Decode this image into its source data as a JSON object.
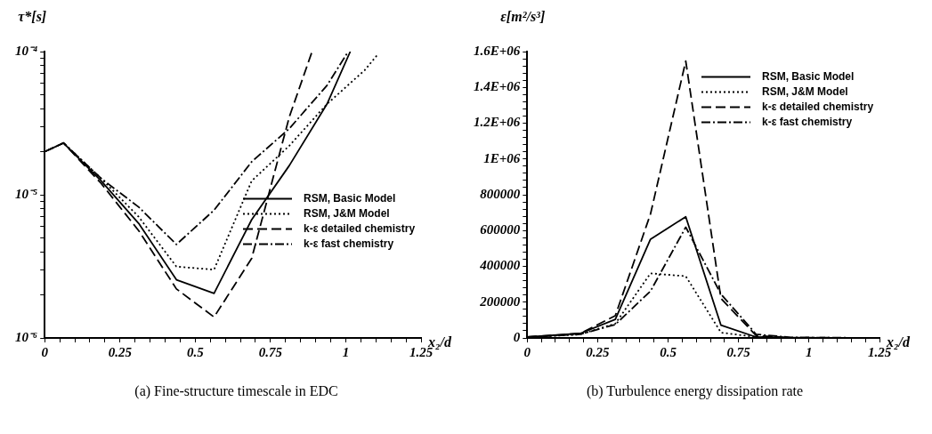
{
  "chart_data": [
    {
      "type": "line",
      "title": "(a) Fine-structure timescale in EDC",
      "xlabel": "x₂/d",
      "ylabel": "τ*[s]",
      "log": "y",
      "legend": "right",
      "xlim": [
        0,
        1.25
      ],
      "ylim": [
        1e-06,
        0.0001
      ],
      "xticks": [
        0,
        {
          "value": 0.05,
          "label": null
        },
        {
          "value": 0.1,
          "label": null
        },
        {
          "value": 0.15,
          "label": null
        },
        {
          "value": 0.2,
          "label": null
        },
        0.25,
        {
          "value": 0.3,
          "label": null
        },
        {
          "value": 0.35,
          "label": null
        },
        {
          "value": 0.4,
          "label": null
        },
        {
          "value": 0.45,
          "label": null
        },
        0.5,
        {
          "value": 0.55,
          "label": null
        },
        {
          "value": 0.6,
          "label": null
        },
        {
          "value": 0.65,
          "label": null
        },
        {
          "value": 0.7,
          "label": null
        },
        0.75,
        {
          "value": 0.8,
          "label": null
        },
        {
          "value": 0.85,
          "label": null
        },
        {
          "value": 0.9,
          "label": null
        },
        {
          "value": 0.95,
          "label": null
        },
        1,
        {
          "value": 1.05,
          "label": null
        },
        {
          "value": 1.1,
          "label": null
        },
        {
          "value": 1.15,
          "label": null
        },
        {
          "value": 1.2,
          "label": null
        },
        1.25
      ],
      "yticks": [
        {
          "value": 1e-06,
          "label": "10⁻⁶"
        },
        {
          "value": 2e-06,
          "label": null
        },
        {
          "value": 3e-06,
          "label": null
        },
        {
          "value": 4e-06,
          "label": null
        },
        {
          "value": 5e-06,
          "label": null
        },
        {
          "value": 6e-06,
          "label": null
        },
        {
          "value": 7e-06,
          "label": null
        },
        {
          "value": 8e-06,
          "label": null
        },
        {
          "value": 9e-06,
          "label": null
        },
        {
          "value": 1e-05,
          "label": "10⁻⁵"
        },
        {
          "value": 2e-05,
          "label": null
        },
        {
          "value": 3e-05,
          "label": null
        },
        {
          "value": 4e-05,
          "label": null
        },
        {
          "value": 5e-05,
          "label": null
        },
        {
          "value": 6e-05,
          "label": null
        },
        {
          "value": 7e-05,
          "label": null
        },
        {
          "value": 8e-05,
          "label": null
        },
        {
          "value": 9e-05,
          "label": null
        },
        {
          "value": 0.0001,
          "label": "10⁻⁴"
        }
      ],
      "series": [
        {
          "name": "RSM, Basic Model",
          "color": "#000000",
          "line_style": "solid",
          "x": [
            0,
            0.0625,
            0.1875,
            0.3125,
            0.4375,
            0.5625,
            0.6875,
            0.8125,
            0.9375,
            1.015
          ],
          "values": [
            2e-05,
            2.3e-05,
            1.25e-05,
            6.3e-06,
            2.55e-06,
            2.05e-06,
            6.7e-06,
            1.6e-05,
            4.3e-05,
            0.0001
          ]
        },
        {
          "name": "RSM, J&M Model",
          "color": "#000000",
          "line_style": "dotted",
          "x": [
            0,
            0.0625,
            0.1875,
            0.3125,
            0.4375,
            0.5625,
            0.6875,
            0.8125,
            0.9375,
            1.0625,
            1.107
          ],
          "values": [
            2e-05,
            2.3e-05,
            1.3e-05,
            7e-06,
            3.15e-06,
            3e-06,
            1.25e-05,
            2.2e-05,
            4.3e-05,
            7.4e-05,
            9.6e-05
          ]
        },
        {
          "name": "k-ε detailed chemistry",
          "color": "#000000",
          "line_style": "dashed",
          "x": [
            0,
            0.0625,
            0.1875,
            0.3125,
            0.4375,
            0.5625,
            0.6875,
            0.8125,
            0.888
          ],
          "values": [
            2e-05,
            2.3e-05,
            1.2e-05,
            5.6e-06,
            2.2e-06,
            1.4e-06,
            3.6e-06,
            3.5e-05,
            0.0001
          ]
        },
        {
          "name": "k-ε fast chemistry",
          "color": "#000000",
          "line_style": "dashdot",
          "x": [
            0,
            0.0625,
            0.1875,
            0.3125,
            0.4375,
            0.5625,
            0.6875,
            0.8125,
            0.9375,
            1.008
          ],
          "values": [
            2e-05,
            2.3e-05,
            1.3e-05,
            8.2e-06,
            4.5e-06,
            7.8e-06,
            1.7e-05,
            2.9e-05,
            5.8e-05,
            0.0001
          ]
        }
      ]
    },
    {
      "type": "line",
      "title": "(b) Turbulence energy dissipation rate",
      "xlabel": "x₂/d",
      "ylabel": "ε[m²/s³]",
      "legend": "top right",
      "xlim": [
        0,
        1.25
      ],
      "ylim": [
        0,
        1600000
      ],
      "xticks": [
        0,
        {
          "value": 0.05,
          "label": null
        },
        {
          "value": 0.1,
          "label": null
        },
        {
          "value": 0.15,
          "label": null
        },
        {
          "value": 0.2,
          "label": null
        },
        0.25,
        {
          "value": 0.3,
          "label": null
        },
        {
          "value": 0.35,
          "label": null
        },
        {
          "value": 0.4,
          "label": null
        },
        {
          "value": 0.45,
          "label": null
        },
        0.5,
        {
          "value": 0.55,
          "label": null
        },
        {
          "value": 0.6,
          "label": null
        },
        {
          "value": 0.65,
          "label": null
        },
        {
          "value": 0.7,
          "label": null
        },
        0.75,
        {
          "value": 0.8,
          "label": null
        },
        {
          "value": 0.85,
          "label": null
        },
        {
          "value": 0.9,
          "label": null
        },
        {
          "value": 0.95,
          "label": null
        },
        1,
        {
          "value": 1.05,
          "label": null
        },
        {
          "value": 1.1,
          "label": null
        },
        {
          "value": 1.15,
          "label": null
        },
        {
          "value": 1.2,
          "label": null
        },
        1.25
      ],
      "yticks": [
        0,
        {
          "value": 40000,
          "label": null
        },
        {
          "value": 80000,
          "label": null
        },
        {
          "value": 120000,
          "label": null
        },
        {
          "value": 160000,
          "label": null
        },
        200000,
        {
          "value": 240000,
          "label": null
        },
        {
          "value": 280000,
          "label": null
        },
        {
          "value": 320000,
          "label": null
        },
        {
          "value": 360000,
          "label": null
        },
        400000,
        {
          "value": 440000,
          "label": null
        },
        {
          "value": 480000,
          "label": null
        },
        {
          "value": 520000,
          "label": null
        },
        {
          "value": 560000,
          "label": null
        },
        600000,
        {
          "value": 640000,
          "label": null
        },
        {
          "value": 680000,
          "label": null
        },
        {
          "value": 720000,
          "label": null
        },
        {
          "value": 760000,
          "label": null
        },
        800000,
        {
          "value": 840000,
          "label": null
        },
        {
          "value": 880000,
          "label": null
        },
        {
          "value": 920000,
          "label": null
        },
        {
          "value": 960000,
          "label": null
        },
        {
          "value": 1000000,
          "label": "1E+06"
        },
        {
          "value": 1040000,
          "label": null
        },
        {
          "value": 1080000,
          "label": null
        },
        {
          "value": 1120000,
          "label": null
        },
        {
          "value": 1160000,
          "label": null
        },
        {
          "value": 1200000,
          "label": "1.2E+06"
        },
        {
          "value": 1240000,
          "label": null
        },
        {
          "value": 1280000,
          "label": null
        },
        {
          "value": 1320000,
          "label": null
        },
        {
          "value": 1360000,
          "label": null
        },
        {
          "value": 1400000,
          "label": "1.4E+06"
        },
        {
          "value": 1440000,
          "label": null
        },
        {
          "value": 1480000,
          "label": null
        },
        {
          "value": 1520000,
          "label": null
        },
        {
          "value": 1560000,
          "label": null
        },
        {
          "value": 1600000,
          "label": "1.6E+06"
        }
      ],
      "series": [
        {
          "name": "RSM, Basic Model",
          "color": "#000000",
          "line_style": "solid",
          "x": [
            0,
            0.1875,
            0.3125,
            0.4375,
            0.5625,
            0.6875,
            0.8125,
            0.9375,
            1.25
          ],
          "values": [
            5000,
            25000,
            104000,
            552000,
            677000,
            71000,
            5000,
            0,
            0
          ]
        },
        {
          "name": "RSM, J&M Model",
          "color": "#000000",
          "line_style": "dotted",
          "x": [
            0,
            0.1875,
            0.3125,
            0.4375,
            0.5625,
            0.6875,
            0.8125,
            0.9375,
            1.25
          ],
          "values": [
            3000,
            20000,
            80000,
            361000,
            345000,
            30000,
            5000,
            0,
            0
          ]
        },
        {
          "name": "k-ε detailed chemistry",
          "color": "#000000",
          "line_style": "dashed",
          "x": [
            0,
            0.1875,
            0.3125,
            0.4375,
            0.5625,
            0.6875,
            0.8125,
            0.9375,
            1.25
          ],
          "values": [
            5000,
            25000,
            124000,
            693000,
            1547000,
            220000,
            13000,
            2000,
            0
          ]
        },
        {
          "name": "k-ε fast chemistry",
          "color": "#000000",
          "line_style": "dashdot",
          "x": [
            0,
            0.1875,
            0.3125,
            0.4375,
            0.5625,
            0.6875,
            0.8125,
            0.9375,
            1.25
          ],
          "values": [
            5000,
            20000,
            75000,
            262000,
            619000,
            245000,
            20000,
            3000,
            0
          ]
        }
      ]
    }
  ]
}
